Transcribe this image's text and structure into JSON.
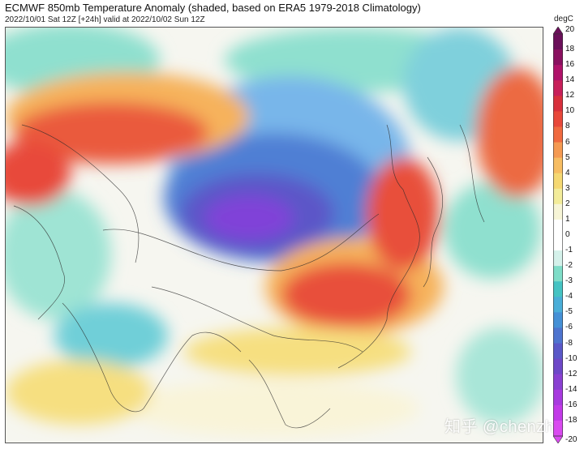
{
  "header": {
    "title": "ECMWF 850mb Temperature Anomaly (shaded, based on ERA5 1979-2018 Climatology)",
    "subtitle": "2022/10/01 Sat 12Z [+24h] valid at 2022/10/02 Sun 12Z"
  },
  "colorbar": {
    "unit": "degC",
    "ticks": [
      "20",
      "18",
      "16",
      "14",
      "12",
      "10",
      "8",
      "6",
      "5",
      "4",
      "3",
      "2",
      "1",
      "0",
      "-1",
      "-2",
      "-3",
      "-4",
      "-5",
      "-6",
      "-8",
      "-10",
      "-12",
      "-14",
      "-16",
      "-18",
      "-20"
    ],
    "colors": [
      "#6b0f5a",
      "#8a1060",
      "#b0126a",
      "#c8205a",
      "#d8303c",
      "#e8483a",
      "#f06a40",
      "#f59a52",
      "#f7bd62",
      "#f5d872",
      "#f3ec9a",
      "#f7f5d6",
      "#ffffff",
      "#ffffff",
      "#d4f1ea",
      "#7fddc8",
      "#45c3c3",
      "#4aaed8",
      "#4590d6",
      "#4e74cf",
      "#5a58c8",
      "#6e48c8",
      "#8a40d2",
      "#a83adf",
      "#c23ae8",
      "#d94af0"
    ]
  },
  "watermark": "知乎 @chenzhe",
  "colors": {
    "cold_core": "#7b3fd6",
    "cold": "#4a6fd0",
    "cool": "#5ba8e0",
    "teal": "#6fd6c2",
    "neutral": "#f8f8f2",
    "warm": "#f5d36a",
    "warmer": "#f4a04f",
    "hot": "#e84b3a"
  }
}
